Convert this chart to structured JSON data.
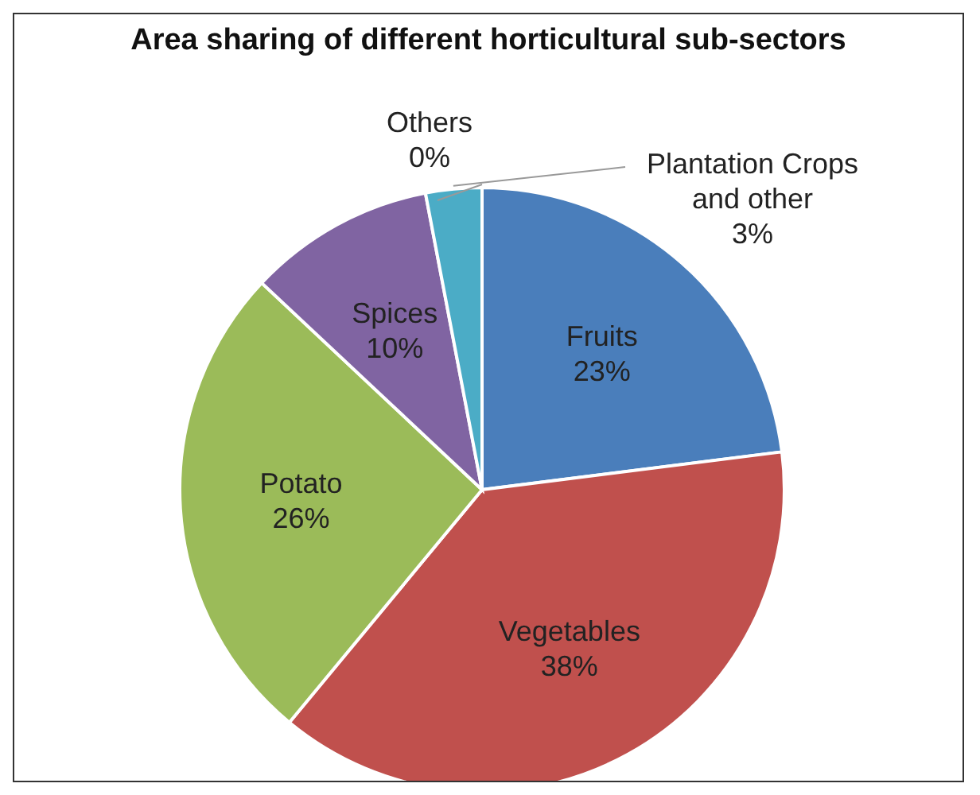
{
  "chart_data": {
    "type": "pie",
    "title": "Area sharing of different horticultural sub-sectors",
    "categories": [
      "Fruits",
      "Vegetables",
      "Potato",
      "Spices",
      "Plantation Crops and other",
      "Others"
    ],
    "values": [
      23,
      38,
      26,
      10,
      3,
      0
    ],
    "value_labels": [
      "23%",
      "38%",
      "26%",
      "10%",
      "3%",
      "0%"
    ],
    "colors": [
      "#4a7ebb",
      "#c0504d",
      "#9bbb59",
      "#8064a2",
      "#4bacc6",
      "#f79646"
    ],
    "legend": false
  }
}
